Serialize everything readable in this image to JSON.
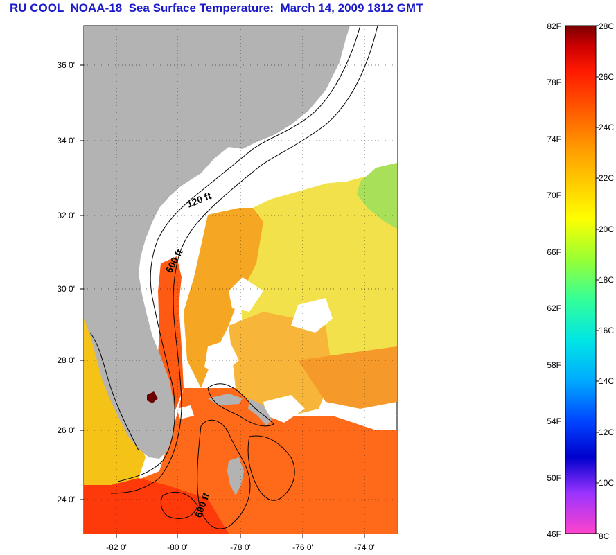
{
  "title": "RU COOL  NOAA-18  Sea Surface Temperature:  March 14, 2009 1812 GMT",
  "lat_ticks": [
    "36 0'",
    "34 0'",
    "32 0'",
    "30 0'",
    "28 0'",
    "26 0'",
    "24 0'"
  ],
  "lon_ticks": [
    "-82 0'",
    "-80 0'",
    "-78 0'",
    "-76 0'",
    "-74 0'"
  ],
  "contours": {
    "label_120": "120 ft",
    "label_600_north": "600 ft",
    "label_600_south": "600 ft"
  },
  "colorbar": {
    "fahrenheit": [
      "82F",
      "78F",
      "74F",
      "70F",
      "66F",
      "62F",
      "58F",
      "54F",
      "50F",
      "46F"
    ],
    "celsius": [
      "28C",
      "26C",
      "24C",
      "22C",
      "20C",
      "18C",
      "16C",
      "14C",
      "12C",
      "10C",
      "8C"
    ],
    "stops": [
      "#ff44cc",
      "#9933ff",
      "#0000cc",
      "#0044ff",
      "#00aaff",
      "#00e5e5",
      "#33ff99",
      "#99ff33",
      "#ffff00",
      "#ffcc00",
      "#ff9900",
      "#ff5500",
      "#ff1a00",
      "#cc0000",
      "#7a0000"
    ]
  },
  "colors": {
    "land": "#b3b3b3",
    "no_data": "#ffffff",
    "warm": "#ff6a1a",
    "yellow": "#f2e600",
    "green": "#99e64d"
  }
}
